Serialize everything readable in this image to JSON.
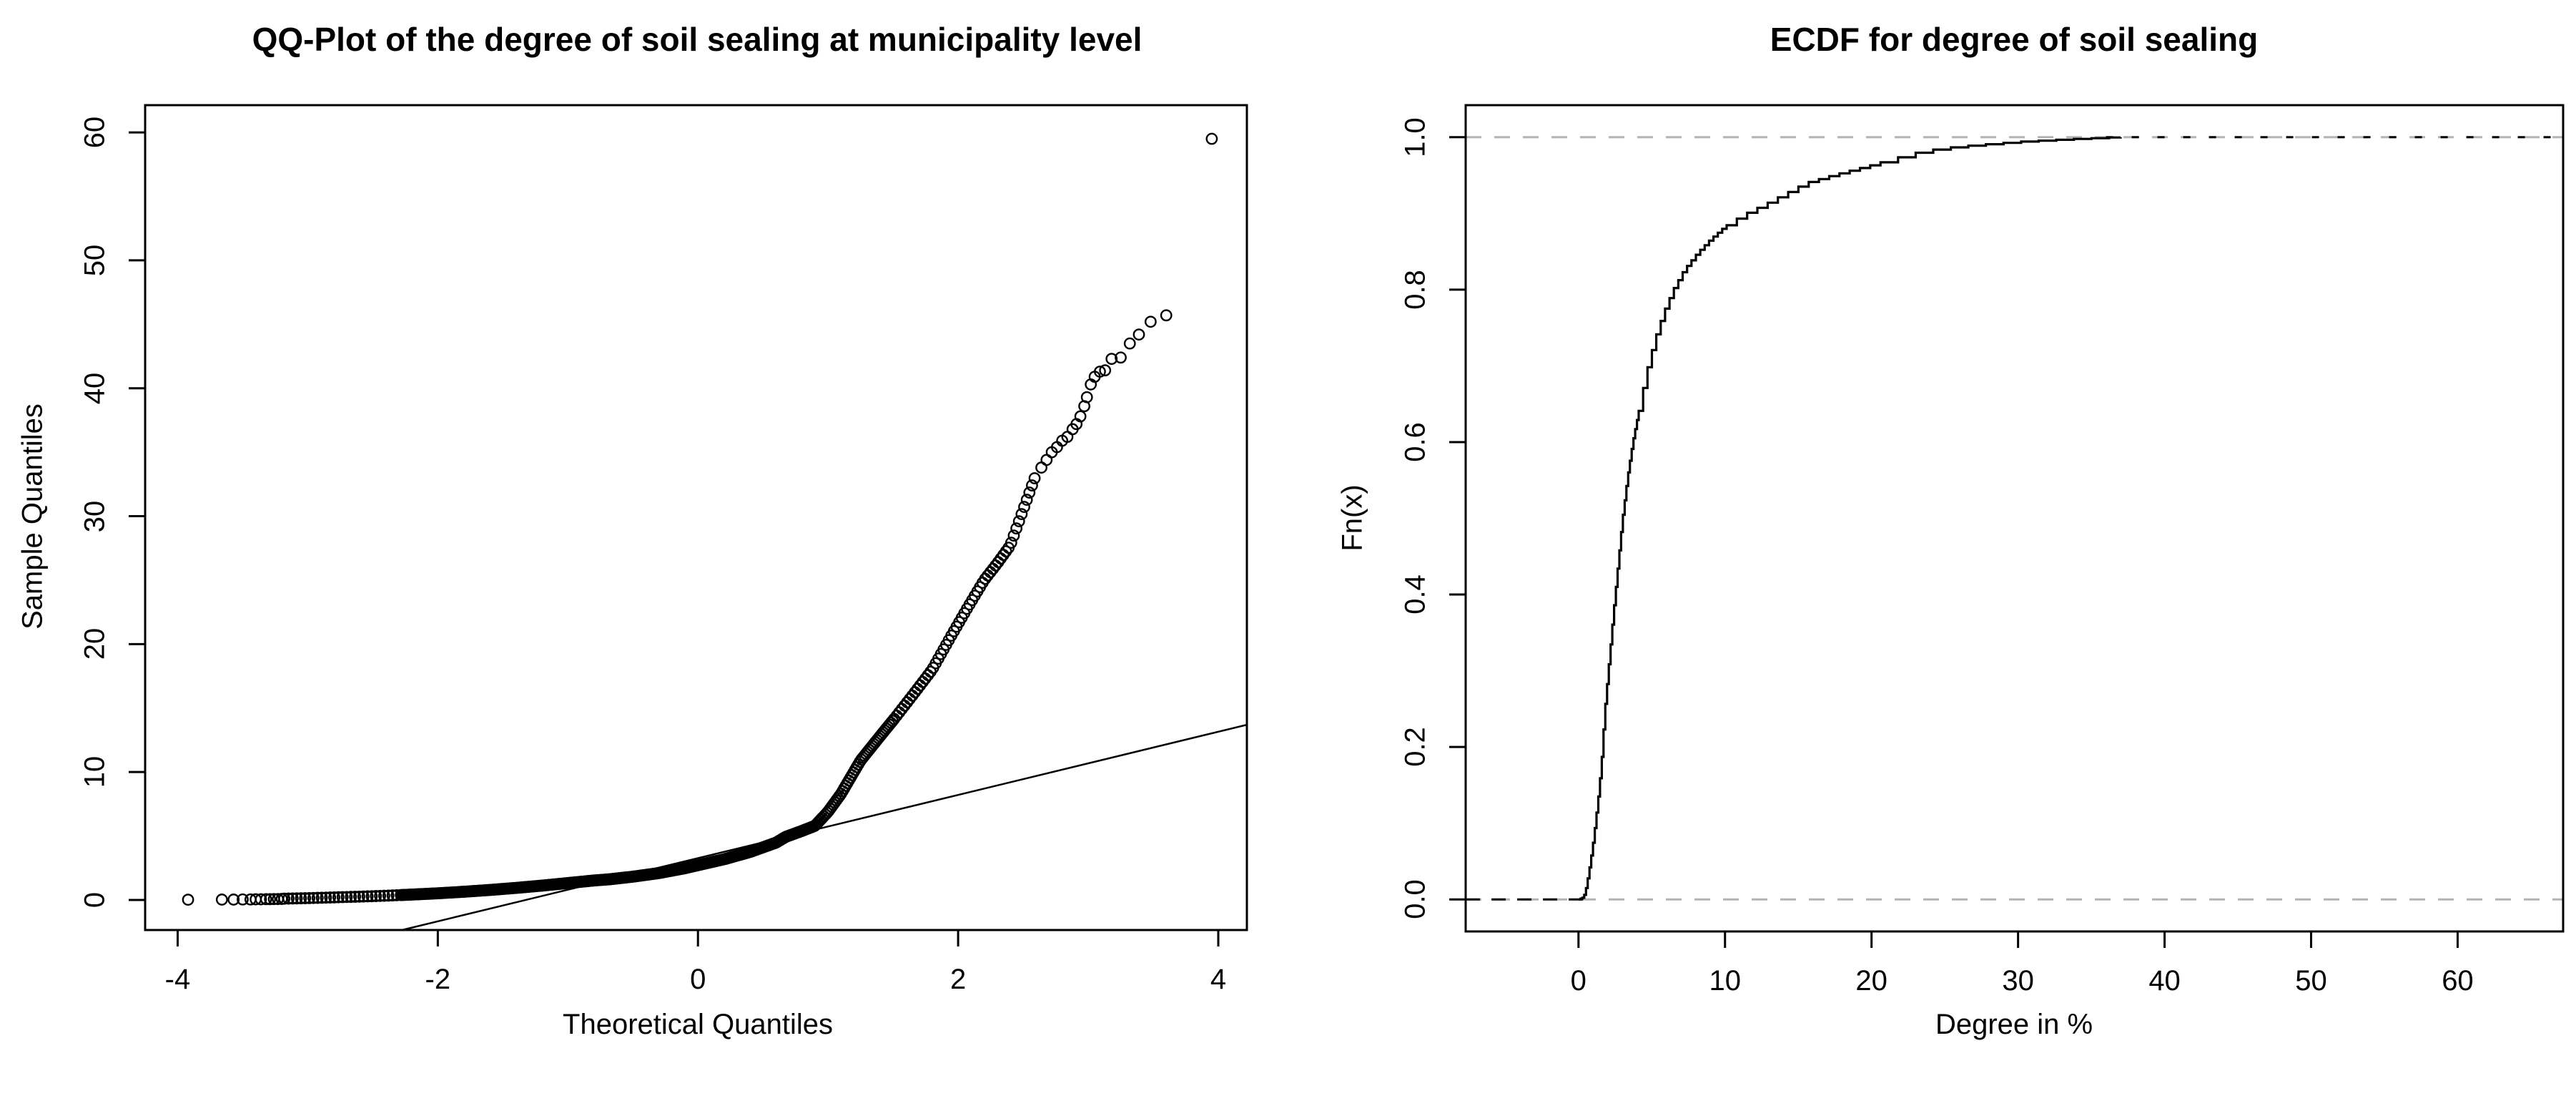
{
  "figure": {
    "background": "#ffffff",
    "foreground": "#000000"
  },
  "chart_data": [
    {
      "type": "scatter",
      "name": "qq-plot",
      "title": "QQ-Plot of the degree of soil sealing at municipality level",
      "xlabel": "Theoretical Quantiles",
      "ylabel": "Sample Quantiles",
      "xlim": [
        -4.25,
        4.22
      ],
      "ylim": [
        -2.35,
        62.13
      ],
      "xticks": [
        -4,
        -2,
        0,
        2,
        4
      ],
      "yticks": [
        0,
        10,
        20,
        30,
        40,
        50,
        60
      ],
      "grid": false,
      "legend": "none",
      "marker": "open-circle",
      "point_color": "#000000",
      "qq_line": {
        "slope": 2.47,
        "intercept": 3.27,
        "color": "#000000"
      },
      "curve_anchors": [
        [
          -3.18,
          0.1
        ],
        [
          -3.0,
          0.14
        ],
        [
          -2.8,
          0.2
        ],
        [
          -2.6,
          0.26
        ],
        [
          -2.4,
          0.33
        ],
        [
          -2.2,
          0.42
        ],
        [
          -2.0,
          0.52
        ],
        [
          -1.8,
          0.64
        ],
        [
          -1.6,
          0.78
        ],
        [
          -1.4,
          0.94
        ],
        [
          -1.2,
          1.12
        ],
        [
          -1.0,
          1.32
        ],
        [
          -0.8,
          1.52
        ],
        [
          -0.674,
          1.62
        ],
        [
          -0.5,
          1.82
        ],
        [
          -0.3,
          2.1
        ],
        [
          -0.1,
          2.48
        ],
        [
          0.0,
          2.72
        ],
        [
          0.2,
          3.18
        ],
        [
          0.4,
          3.75
        ],
        [
          0.6,
          4.48
        ],
        [
          0.674,
          4.93
        ],
        [
          0.8,
          5.4
        ],
        [
          0.9,
          5.8
        ],
        [
          1.0,
          6.9
        ],
        [
          1.1,
          8.3
        ],
        [
          1.25,
          10.9
        ],
        [
          1.4,
          12.8
        ],
        [
          1.52,
          14.3
        ],
        [
          1.65,
          16.0
        ],
        [
          1.8,
          18.0
        ],
        [
          1.95,
          20.7
        ],
        [
          2.07,
          22.8
        ],
        [
          2.2,
          25.0
        ],
        [
          2.3,
          26.3
        ],
        [
          2.4,
          27.7
        ],
        [
          2.5,
          30.5
        ],
        [
          2.6,
          33.3
        ]
      ],
      "band_z_range": [
        -3.18,
        2.6
      ],
      "left_tail_points": [
        [
          -3.92,
          0.02
        ],
        [
          -3.66,
          0.03
        ],
        [
          -3.57,
          0.03
        ],
        [
          -3.5,
          0.04
        ],
        [
          -3.44,
          0.04
        ],
        [
          -3.4,
          0.05
        ],
        [
          -3.36,
          0.05
        ],
        [
          -3.32,
          0.06
        ],
        [
          -3.29,
          0.06
        ],
        [
          -3.26,
          0.07
        ],
        [
          -3.23,
          0.07
        ],
        [
          -3.2,
          0.08
        ]
      ],
      "right_tail_points": [
        [
          2.64,
          33.8
        ],
        [
          2.68,
          34.4
        ],
        [
          2.72,
          35.0
        ],
        [
          2.76,
          35.4
        ],
        [
          2.8,
          35.9
        ],
        [
          2.84,
          36.2
        ],
        [
          2.88,
          36.8
        ],
        [
          2.91,
          37.2
        ],
        [
          2.94,
          37.8
        ],
        [
          2.97,
          38.6
        ],
        [
          2.99,
          39.3
        ],
        [
          3.02,
          40.3
        ],
        [
          3.05,
          40.9
        ],
        [
          3.09,
          41.3
        ],
        [
          3.13,
          41.4
        ],
        [
          3.18,
          42.3
        ],
        [
          3.25,
          42.4
        ],
        [
          3.32,
          43.5
        ],
        [
          3.39,
          44.2
        ],
        [
          3.48,
          45.2
        ],
        [
          3.6,
          45.7
        ]
      ],
      "outlier": [
        3.95,
        59.5
      ]
    },
    {
      "type": "line",
      "name": "ecdf-plot",
      "title": "ECDF for degree of soil sealing",
      "xlabel": "Degree in %",
      "ylabel": "Fn(x)",
      "xlim": [
        -7.7,
        67.2
      ],
      "ylim": [
        -0.042,
        1.042
      ],
      "xticks": [
        0,
        10,
        20,
        30,
        40,
        50,
        60
      ],
      "yticks": [
        0,
        0.2,
        0.4,
        0.6,
        0.8,
        1
      ],
      "ytick_labels": [
        "0.0",
        "0.2",
        "0.4",
        "0.6",
        "0.8",
        "1.0"
      ],
      "grid": false,
      "legend": "none",
      "line_color": "#000000",
      "ref_lines": {
        "values": [
          0,
          1
        ],
        "color": "#b3b3b3",
        "style": "dashed"
      },
      "pre_min_black_to": 0.35,
      "post_max_black_from": 36,
      "ecdf_anchors": [
        [
          0.03,
          0.0
        ],
        [
          0.35,
          0.003
        ],
        [
          0.55,
          0.018
        ],
        [
          0.75,
          0.042
        ],
        [
          0.95,
          0.068
        ],
        [
          1.15,
          0.1
        ],
        [
          1.35,
          0.135
        ],
        [
          1.55,
          0.175
        ],
        [
          1.8,
          0.25
        ],
        [
          2.1,
          0.315
        ],
        [
          2.4,
          0.38
        ],
        [
          2.7,
          0.44
        ],
        [
          3.0,
          0.5
        ],
        [
          3.35,
          0.555
        ],
        [
          3.7,
          0.6
        ],
        [
          4.15,
          0.645
        ],
        [
          4.6,
          0.69
        ],
        [
          5.2,
          0.735
        ],
        [
          5.8,
          0.77
        ],
        [
          6.45,
          0.8
        ],
        [
          7.2,
          0.826
        ],
        [
          8.1,
          0.848
        ],
        [
          9.0,
          0.866
        ],
        [
          10.0,
          0.883
        ],
        [
          11.2,
          0.898
        ],
        [
          12.5,
          0.91
        ],
        [
          14.0,
          0.925
        ],
        [
          15.5,
          0.94
        ],
        [
          17.3,
          0.95
        ],
        [
          19.9,
          0.963
        ],
        [
          21.5,
          0.972
        ],
        [
          23.5,
          0.982
        ],
        [
          26.0,
          0.988
        ],
        [
          28.0,
          0.991
        ],
        [
          30.0,
          0.994
        ],
        [
          33.0,
          0.997
        ],
        [
          36.0,
          0.9995
        ],
        [
          37.0,
          1.0
        ]
      ]
    }
  ]
}
